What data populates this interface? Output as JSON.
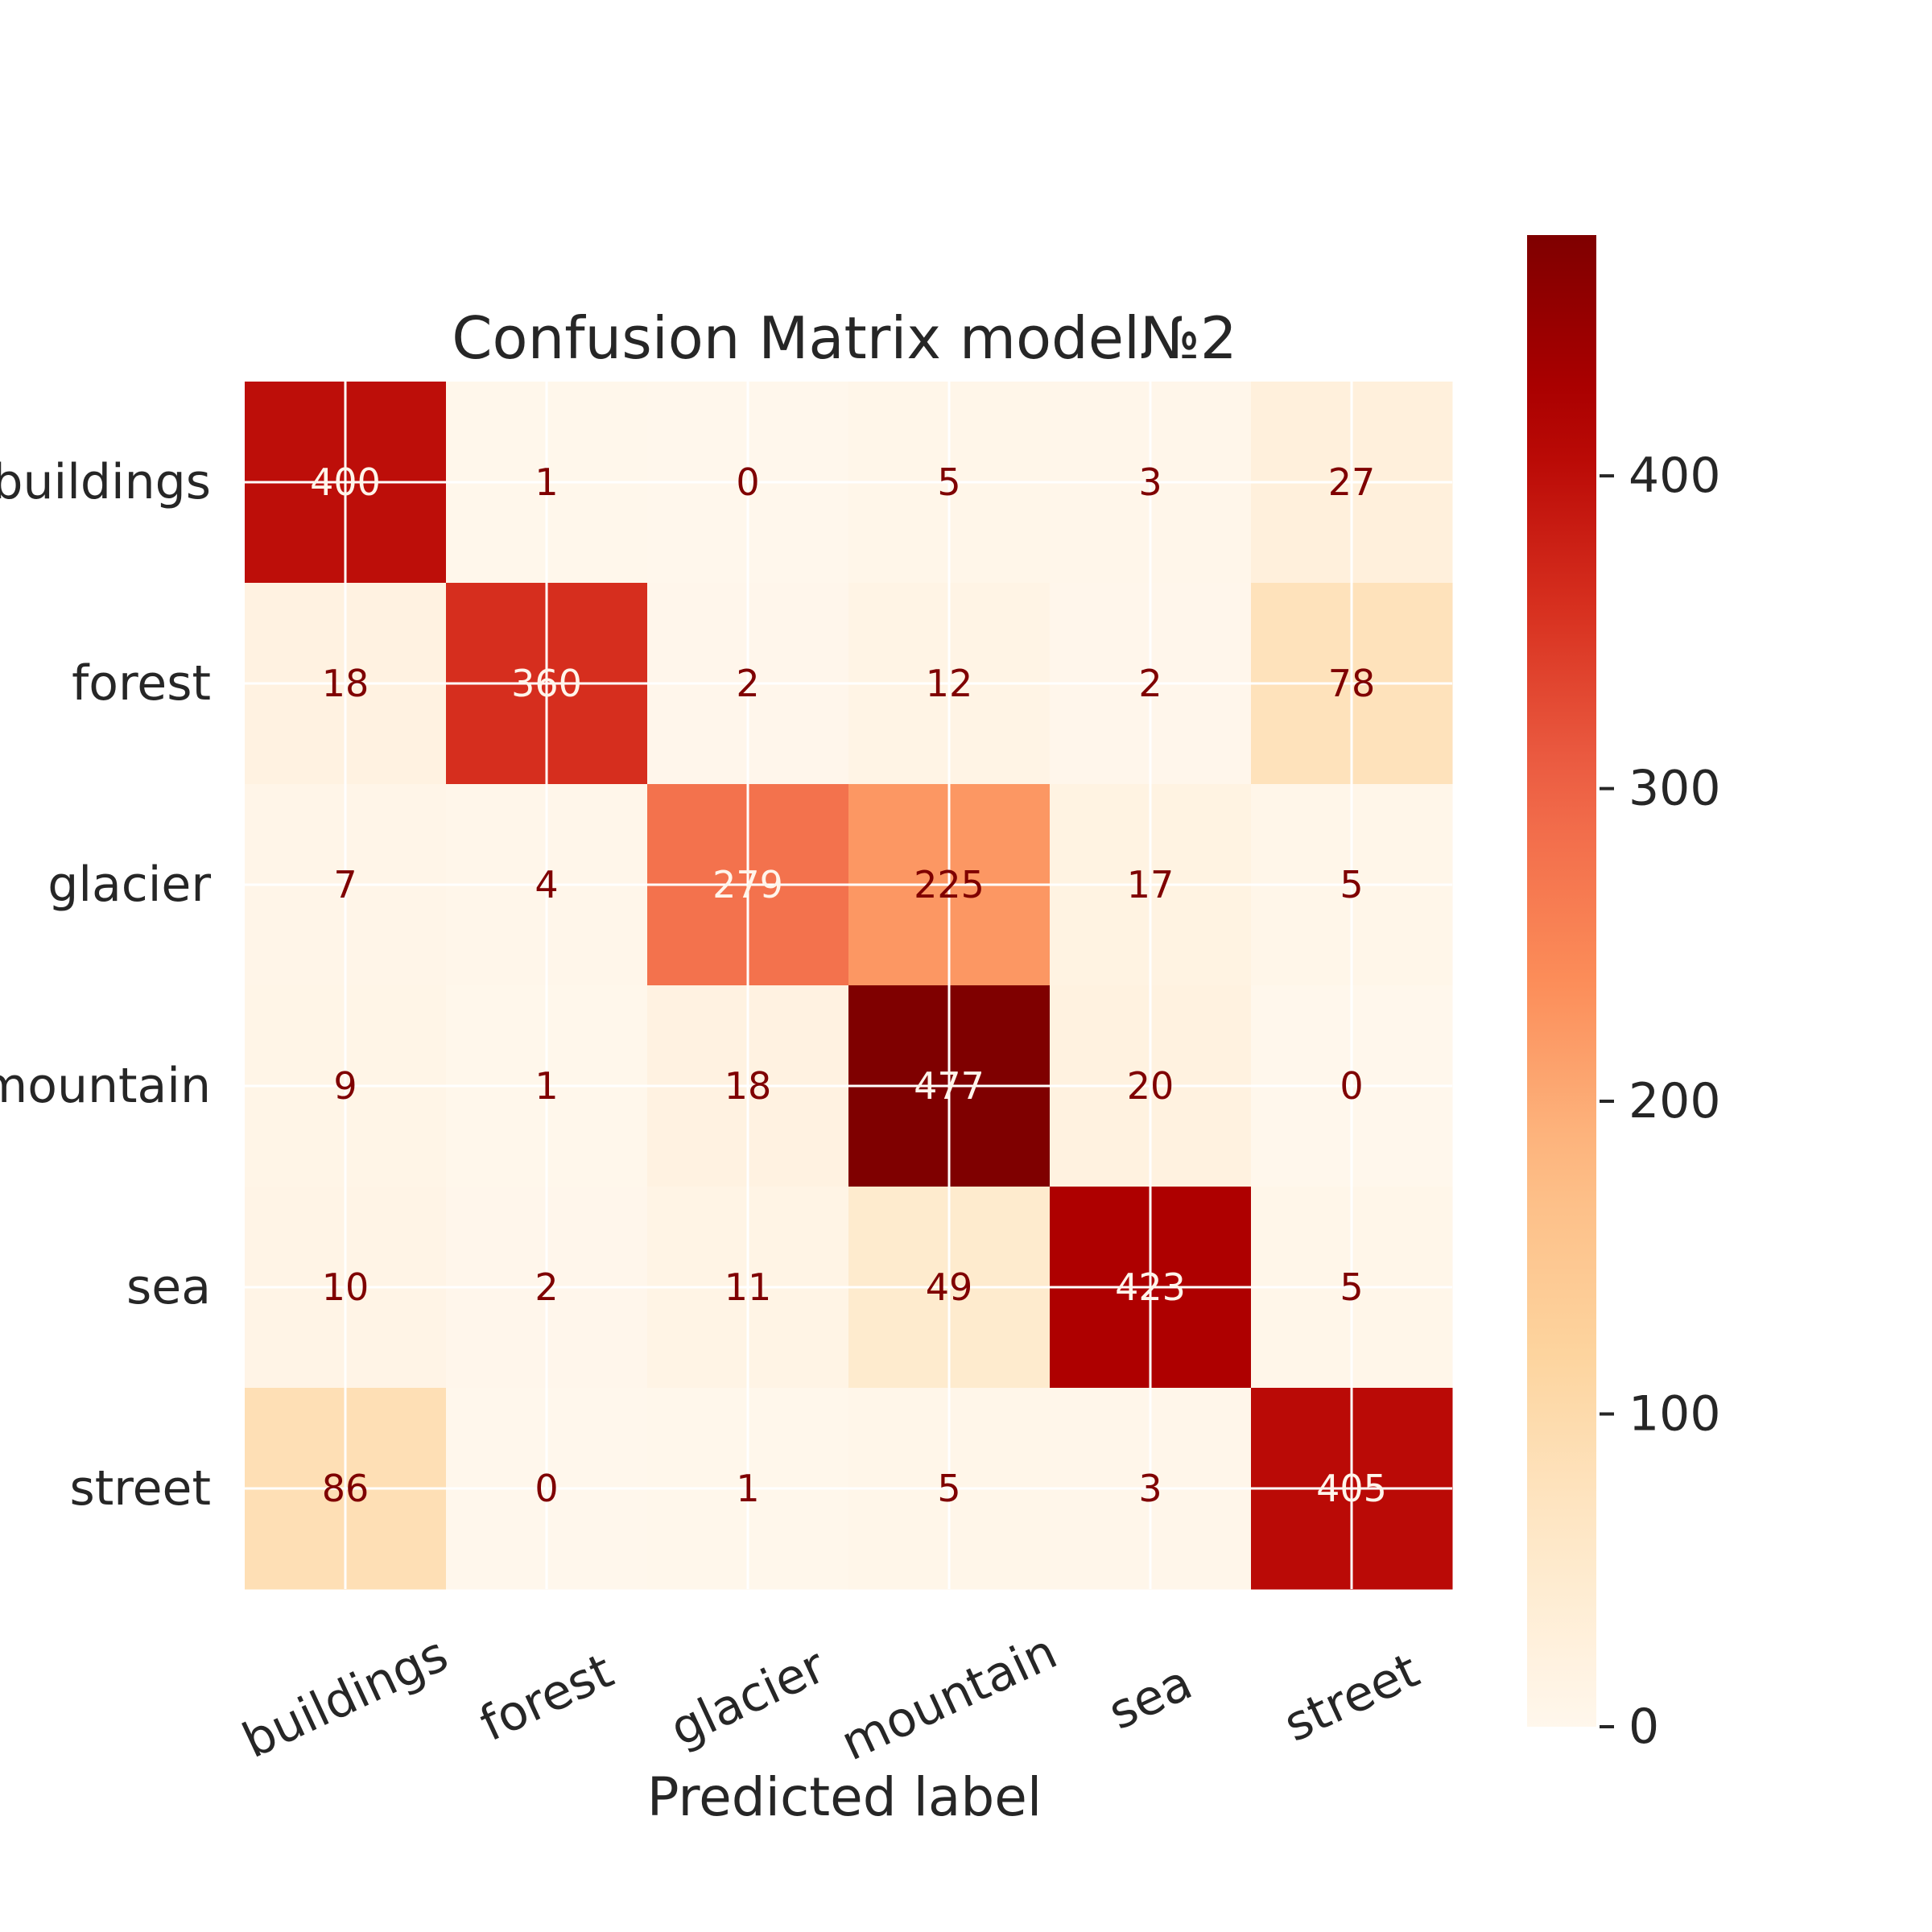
{
  "chart_data": {
    "type": "heatmap",
    "title": "Confusion Matrix model№2",
    "xlabel": "Predicted label",
    "ylabel": "",
    "x_categories": [
      "buildings",
      "forest",
      "glacier",
      "mountain",
      "sea",
      "street"
    ],
    "y_categories": [
      "buildings",
      "forest",
      "glacier",
      "mountain",
      "sea",
      "street"
    ],
    "values": [
      [
        400,
        1,
        0,
        5,
        3,
        27
      ],
      [
        18,
        360,
        2,
        12,
        2,
        78
      ],
      [
        7,
        4,
        279,
        225,
        17,
        5
      ],
      [
        9,
        1,
        18,
        477,
        20,
        0
      ],
      [
        10,
        2,
        11,
        49,
        423,
        5
      ],
      [
        86,
        0,
        1,
        5,
        3,
        405
      ]
    ],
    "colormap": "OrRd",
    "colorbar": {
      "range": [
        0,
        477
      ],
      "ticks": [
        0,
        100,
        200,
        300,
        400
      ]
    },
    "text_colors": {
      "dark": "#7f0000",
      "light": "#fff5eb"
    },
    "grid": true
  }
}
